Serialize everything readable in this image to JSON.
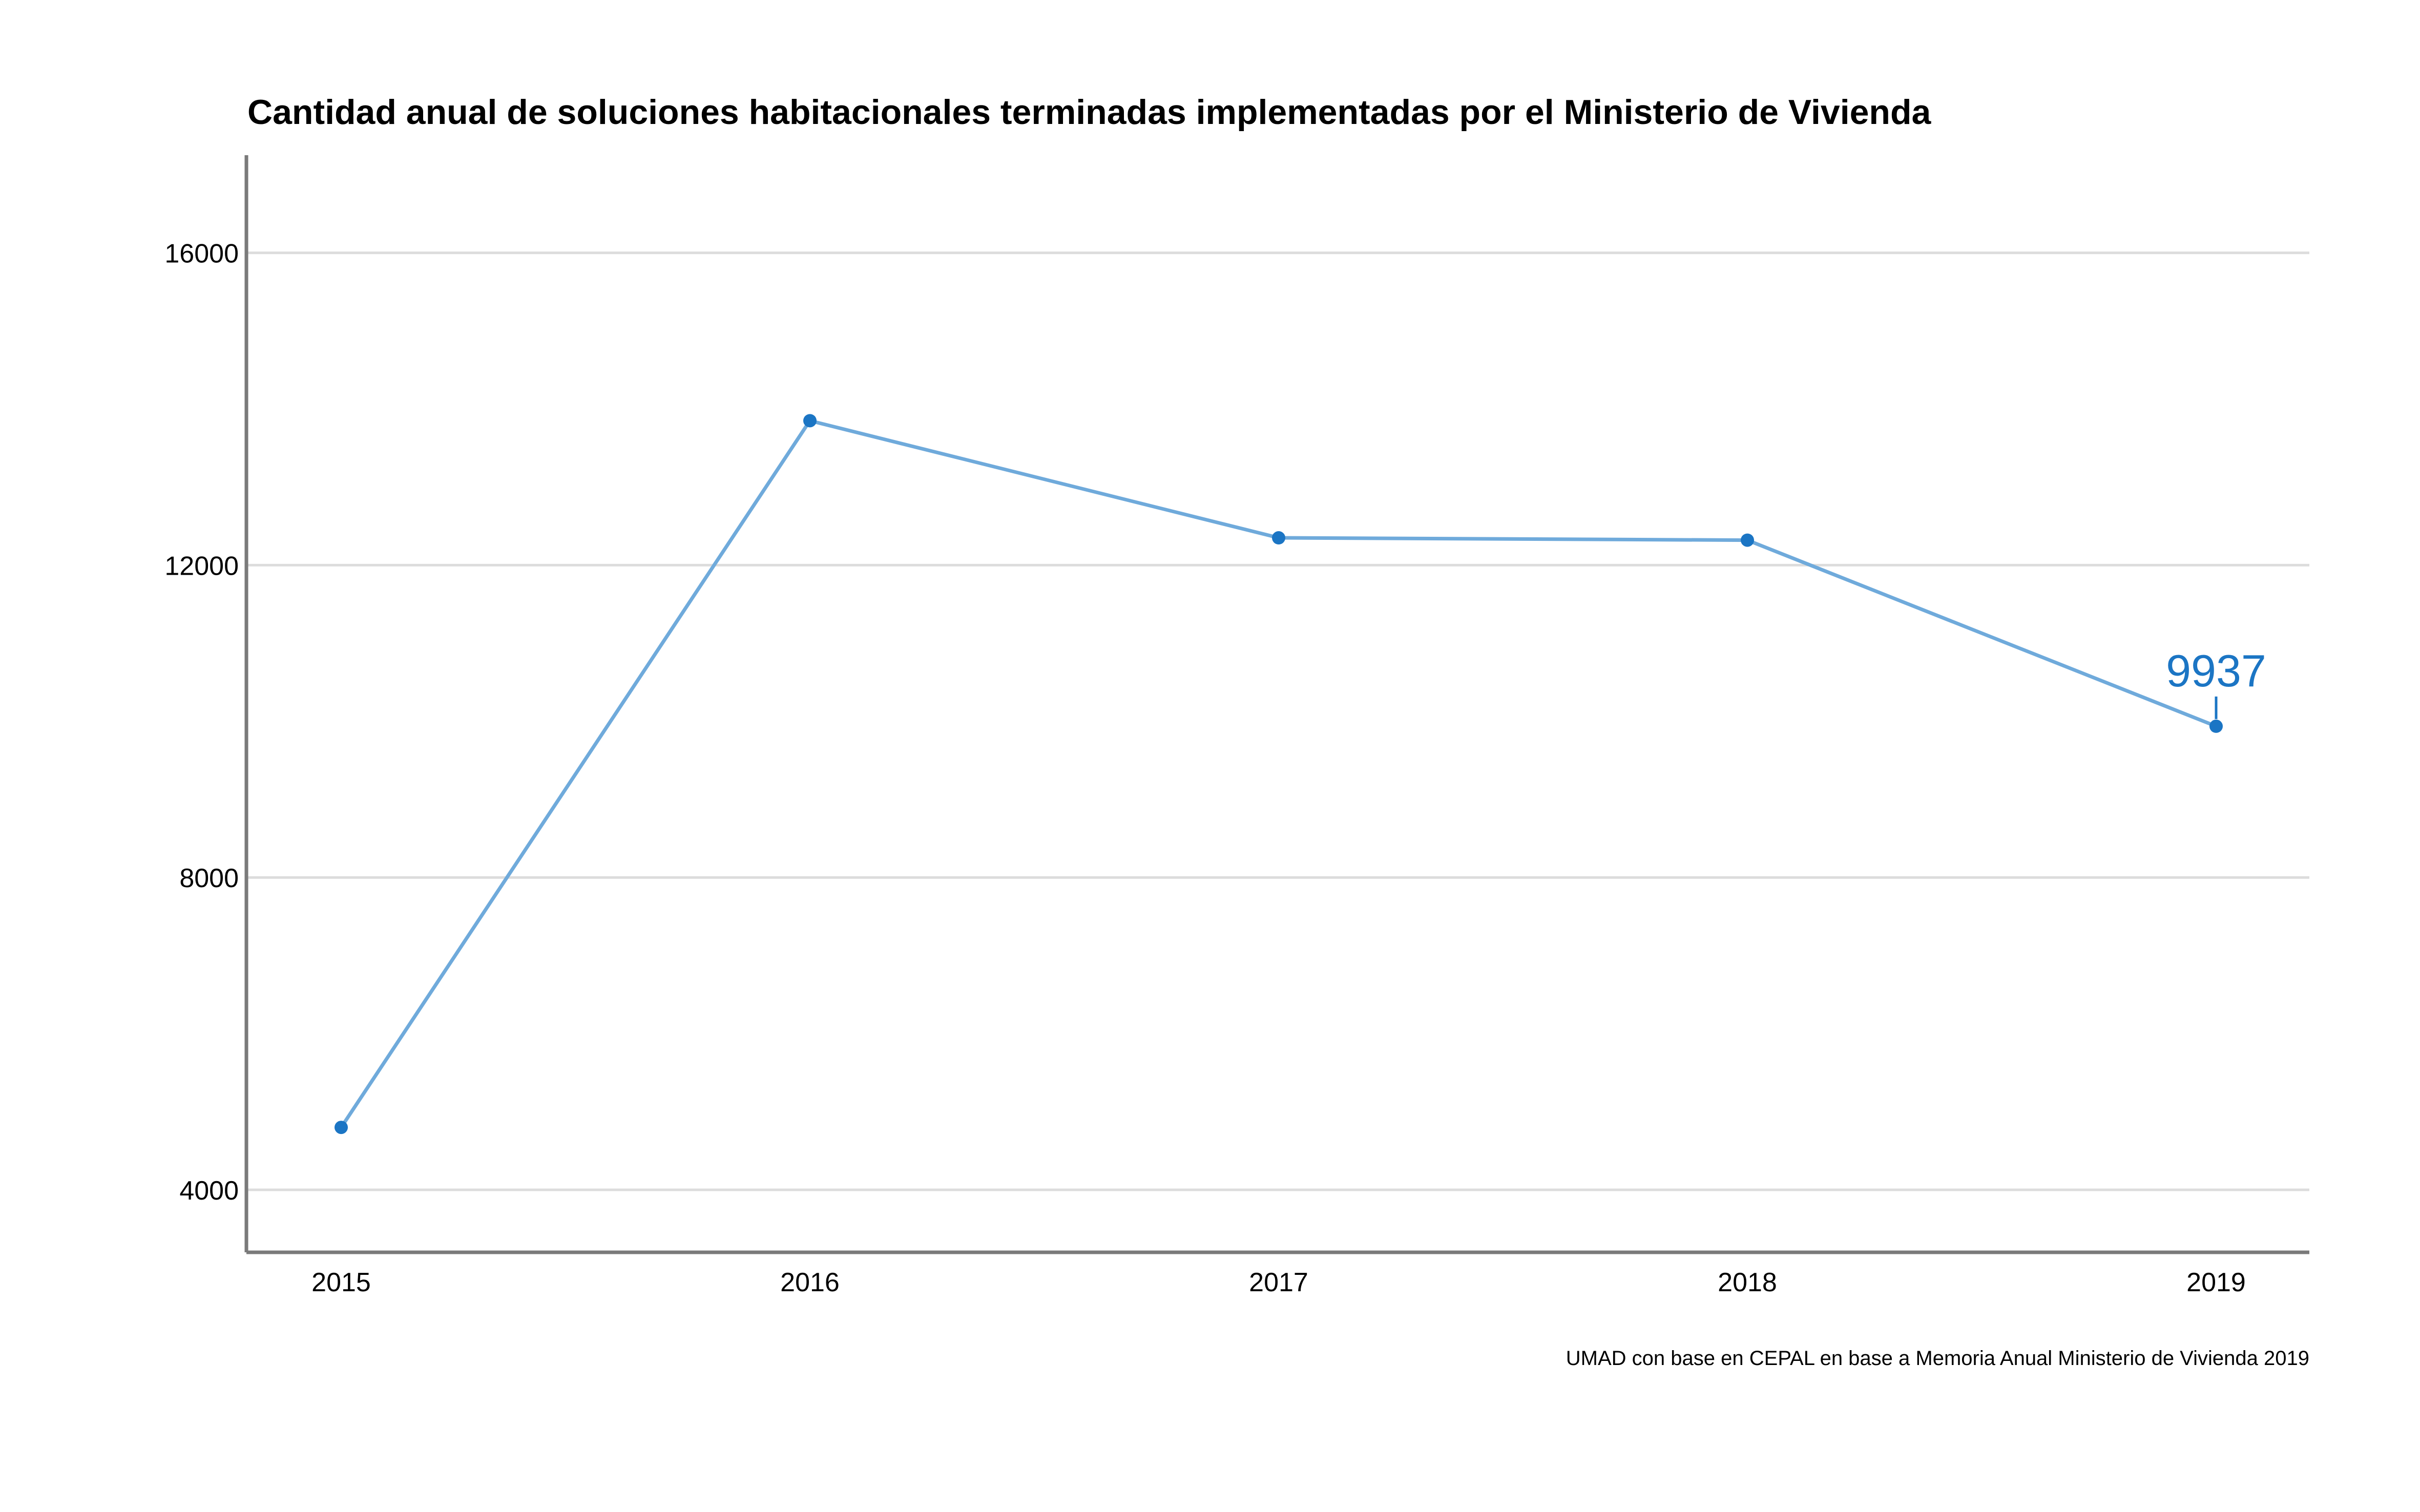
{
  "chart_data": {
    "type": "line",
    "title": "Cantidad anual de soluciones habitacionales terminadas implementadas por el Ministerio de Vivienda",
    "xlabel": "",
    "ylabel": "",
    "categories": [
      "2015",
      "2016",
      "2017",
      "2018",
      "2019"
    ],
    "series": [
      {
        "values": [
          4800,
          13850,
          12350,
          12320,
          9937
        ]
      }
    ],
    "y_ticks": [
      "4000",
      "8000",
      "12000",
      "16000"
    ],
    "ylim": [
      3200,
      17250
    ],
    "grid": "horizontal",
    "legend": "none",
    "annotations": [
      {
        "category": "2019",
        "text": "9937"
      }
    ],
    "caption": "UMAD con base en CEPAL en base a Memoria Anual Ministerio de Vivienda 2019",
    "colors": {
      "line": "#6faadb",
      "point": "#1b75c4",
      "label": "#1b75c4"
    }
  }
}
